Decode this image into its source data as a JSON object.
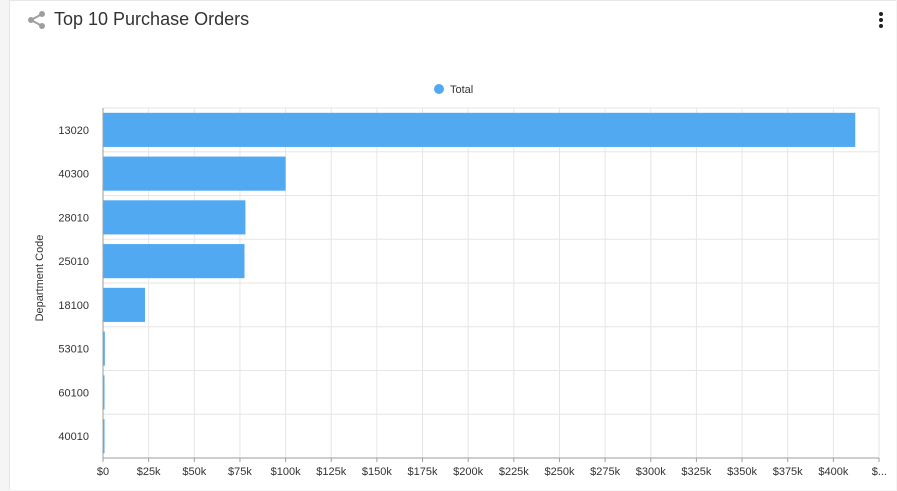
{
  "widget": {
    "title": "Top 10 Purchase Orders",
    "share_icon": "share-icon",
    "menu_icon": "kebab-vertical-icon"
  },
  "colors": {
    "bar": "#51a9f2",
    "grid": "#e6e6e6",
    "axis": "#9e9e9e",
    "text": "#333333"
  },
  "chart_data": {
    "type": "bar",
    "orientation": "horizontal",
    "categories": [
      "13020",
      "40300",
      "28010",
      "25010",
      "18100",
      "53010",
      "60100",
      "40010"
    ],
    "series": [
      {
        "name": "Total",
        "values": [
          412000,
          100000,
          78000,
          77500,
          23000,
          1000,
          500,
          300
        ]
      }
    ],
    "ylabel": "Department Code",
    "xlim": [
      0,
      425000
    ],
    "xticks": [
      0,
      25000,
      50000,
      75000,
      100000,
      125000,
      150000,
      175000,
      200000,
      225000,
      250000,
      275000,
      300000,
      325000,
      350000,
      375000,
      400000,
      425000
    ],
    "xtick_labels": [
      "$0",
      "$25k",
      "$50k",
      "$75k",
      "$100k",
      "$125k",
      "$150k",
      "$175k",
      "$200k",
      "$225k",
      "$250k",
      "$275k",
      "$300k",
      "$325k",
      "$350k",
      "$375k",
      "$400k",
      "$..."
    ],
    "legend_position": "top-center",
    "grid": true
  }
}
